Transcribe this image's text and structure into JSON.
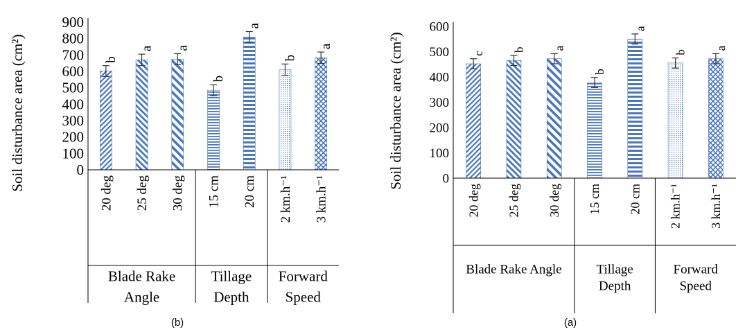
{
  "chart_data": [
    {
      "type": "bar",
      "caption": "(b)",
      "ylabel": "Soil disturbance area (cm²)",
      "ylim": [
        0,
        900
      ],
      "yticks": [
        0,
        100,
        200,
        300,
        400,
        500,
        600,
        700,
        800,
        900
      ],
      "grid": false,
      "legend": "none",
      "categories": [
        "20 deg",
        "25 deg",
        "30 deg",
        "15 cm",
        "20 cm",
        "2 km.h⁻¹",
        "3 km.h⁻¹"
      ],
      "values": [
        602,
        670,
        675,
        485,
        810,
        610,
        683
      ],
      "errors": [
        33,
        35,
        33,
        33,
        33,
        35,
        35
      ],
      "letters": [
        "b",
        "a",
        "a",
        "b",
        "a",
        "b",
        "a"
      ],
      "groups": [
        {
          "label_lines": [
            "Blade Rake",
            "Angle"
          ],
          "count": 3
        },
        {
          "label_lines": [
            "Tillage",
            "Depth"
          ],
          "count": 2
        },
        {
          "label_lines": [
            "Forward",
            "Speed"
          ],
          "count": 2
        }
      ]
    },
    {
      "type": "bar",
      "caption": "(a)",
      "ylabel": "Soil disturbance area (cm²)",
      "ylim": [
        0,
        600
      ],
      "yticks": [
        0,
        100,
        200,
        300,
        400,
        500,
        600
      ],
      "grid": false,
      "legend": "none",
      "categories": [
        "20 deg",
        "25 deg",
        "30 deg",
        "15 cm",
        "20 cm",
        "2 km.h⁻¹",
        "3 km.h⁻¹"
      ],
      "values": [
        452,
        465,
        472,
        378,
        550,
        455,
        472
      ],
      "errors": [
        20,
        20,
        20,
        20,
        20,
        20,
        20
      ],
      "letters": [
        "c",
        "b",
        "a",
        "b",
        "a",
        "b",
        "a"
      ],
      "groups": [
        {
          "label_lines": [
            "Blade Rake Angle"
          ],
          "count": 3
        },
        {
          "label_lines": [
            "Tillage",
            "Depth"
          ],
          "count": 2
        },
        {
          "label_lines": [
            "Forward",
            "Speed"
          ],
          "count": 2
        }
      ]
    }
  ],
  "colors": {
    "pattern_fg": "#4a76c0",
    "pattern_bg": "#ffffff"
  },
  "patterns": [
    "diag-up",
    "diag-down-wide",
    "diag-down",
    "horiz",
    "horiz-wide",
    "dots",
    "crosshatch"
  ]
}
